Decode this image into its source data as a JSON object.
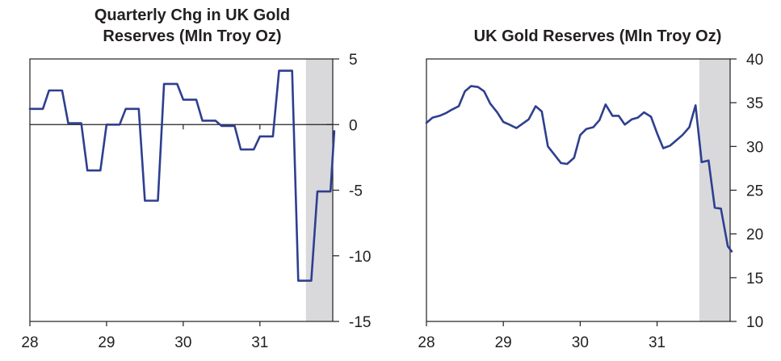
{
  "chart_data": [
    {
      "type": "line",
      "title": "Quarterly Chg in UK Gold Reserves (Mln Troy Oz)",
      "title_lines": [
        "Quarterly Chg in UK Gold",
        "Reserves (Mln Troy Oz)"
      ],
      "xlabel": "",
      "ylabel": "",
      "xlim": [
        28.0,
        31.95
      ],
      "ylim": [
        -15,
        5
      ],
      "yticks": [
        5,
        0,
        -5,
        -10,
        -15
      ],
      "ytick_labels": [
        "5",
        "0",
        "-5",
        "-10",
        "-15"
      ],
      "xticks": [
        28,
        29,
        30,
        31
      ],
      "xtick_labels": [
        "28",
        "29",
        "30",
        "31"
      ],
      "zero_line": true,
      "shaded_region": [
        31.6,
        31.95
      ],
      "colors": {
        "line": "#2e3f8f",
        "shade": "#d9d9dc",
        "axis": "#231f20"
      },
      "series": [
        {
          "name": "Quarterly Chg",
          "x": [
            28.0,
            28.17,
            28.25,
            28.42,
            28.5,
            28.67,
            28.75,
            28.92,
            29.0,
            29.17,
            29.25,
            29.42,
            29.5,
            29.67,
            29.75,
            29.92,
            30.0,
            30.17,
            30.25,
            30.42,
            30.5,
            30.67,
            30.75,
            30.92,
            31.0,
            31.17,
            31.25,
            31.42,
            31.5,
            31.67,
            31.75,
            31.92,
            31.97
          ],
          "values": [
            1.2,
            1.2,
            2.6,
            2.6,
            0.1,
            0.1,
            -3.5,
            -3.5,
            0.0,
            0.0,
            1.2,
            1.2,
            -5.8,
            -5.8,
            3.1,
            3.1,
            1.9,
            1.9,
            0.3,
            0.3,
            -0.1,
            -0.1,
            -1.9,
            -1.9,
            -0.9,
            -0.9,
            4.1,
            4.1,
            -11.9,
            -11.9,
            -5.1,
            -5.1,
            -0.5
          ]
        }
      ]
    },
    {
      "type": "line",
      "title": "UK Gold Reserves (Mln Troy Oz)",
      "title_lines": [
        "UK Gold Reserves (Mln Troy Oz)"
      ],
      "xlabel": "",
      "ylabel": "",
      "xlim": [
        28.0,
        31.95
      ],
      "ylim": [
        10,
        40
      ],
      "yticks": [
        40,
        35,
        30,
        25,
        20,
        15,
        10
      ],
      "ytick_labels": [
        "40",
        "35",
        "30",
        "25",
        "20",
        "15",
        "10"
      ],
      "xticks": [
        28,
        29,
        30,
        31
      ],
      "xtick_labels": [
        "28",
        "29",
        "30",
        "31"
      ],
      "zero_line": false,
      "shaded_region": [
        31.55,
        31.95
      ],
      "colors": {
        "line": "#2e3f8f",
        "shade": "#d9d9dc",
        "axis": "#231f20"
      },
      "series": [
        {
          "name": "UK Gold Reserves",
          "x": [
            28.0,
            28.08,
            28.17,
            28.25,
            28.33,
            28.42,
            28.5,
            28.58,
            28.67,
            28.75,
            28.83,
            28.92,
            29.0,
            29.08,
            29.17,
            29.25,
            29.33,
            29.42,
            29.5,
            29.58,
            29.67,
            29.75,
            29.83,
            29.92,
            30.0,
            30.08,
            30.17,
            30.25,
            30.33,
            30.42,
            30.5,
            30.58,
            30.67,
            30.75,
            30.83,
            30.92,
            31.0,
            31.08,
            31.17,
            31.25,
            31.33,
            31.42,
            31.5,
            31.58,
            31.67,
            31.75,
            31.83,
            31.92,
            31.97
          ],
          "values": [
            32.7,
            33.3,
            33.5,
            33.8,
            34.2,
            34.6,
            36.3,
            36.9,
            36.8,
            36.3,
            34.9,
            33.9,
            32.8,
            32.5,
            32.1,
            32.6,
            33.1,
            34.6,
            34.0,
            30.0,
            29.0,
            28.1,
            28.0,
            28.7,
            31.3,
            32.0,
            32.2,
            33.0,
            34.8,
            33.5,
            33.5,
            32.5,
            33.1,
            33.3,
            33.9,
            33.4,
            31.5,
            29.8,
            30.1,
            30.7,
            31.3,
            32.2,
            34.7,
            28.2,
            28.4,
            23.0,
            22.9,
            18.6,
            18.0
          ]
        }
      ]
    }
  ]
}
